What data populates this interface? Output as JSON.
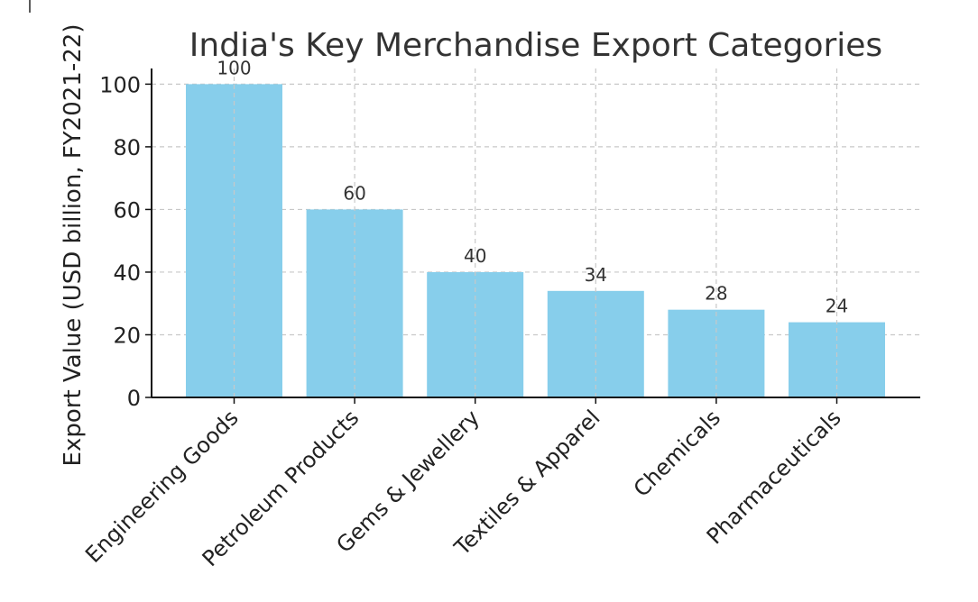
{
  "chart_data": {
    "type": "bar",
    "title": "India's Key Merchandise Export Categories",
    "xlabel": "",
    "ylabel": "Export Value (USD billion, FY2021-22)",
    "categories": [
      "Engineering Goods",
      "Petroleum Products",
      "Gems & Jewellery",
      "Textiles & Apparel",
      "Chemicals",
      "Pharmaceuticals"
    ],
    "values": [
      100,
      60,
      40,
      34,
      28,
      24
    ],
    "data_labels": [
      "100",
      "60",
      "40",
      "34",
      "28",
      "24"
    ],
    "y_ticks": [
      0,
      20,
      40,
      60,
      80,
      100
    ],
    "ylim": [
      0,
      105
    ],
    "grid": true,
    "legend": "none",
    "bar_color": "#87ceeb"
  }
}
